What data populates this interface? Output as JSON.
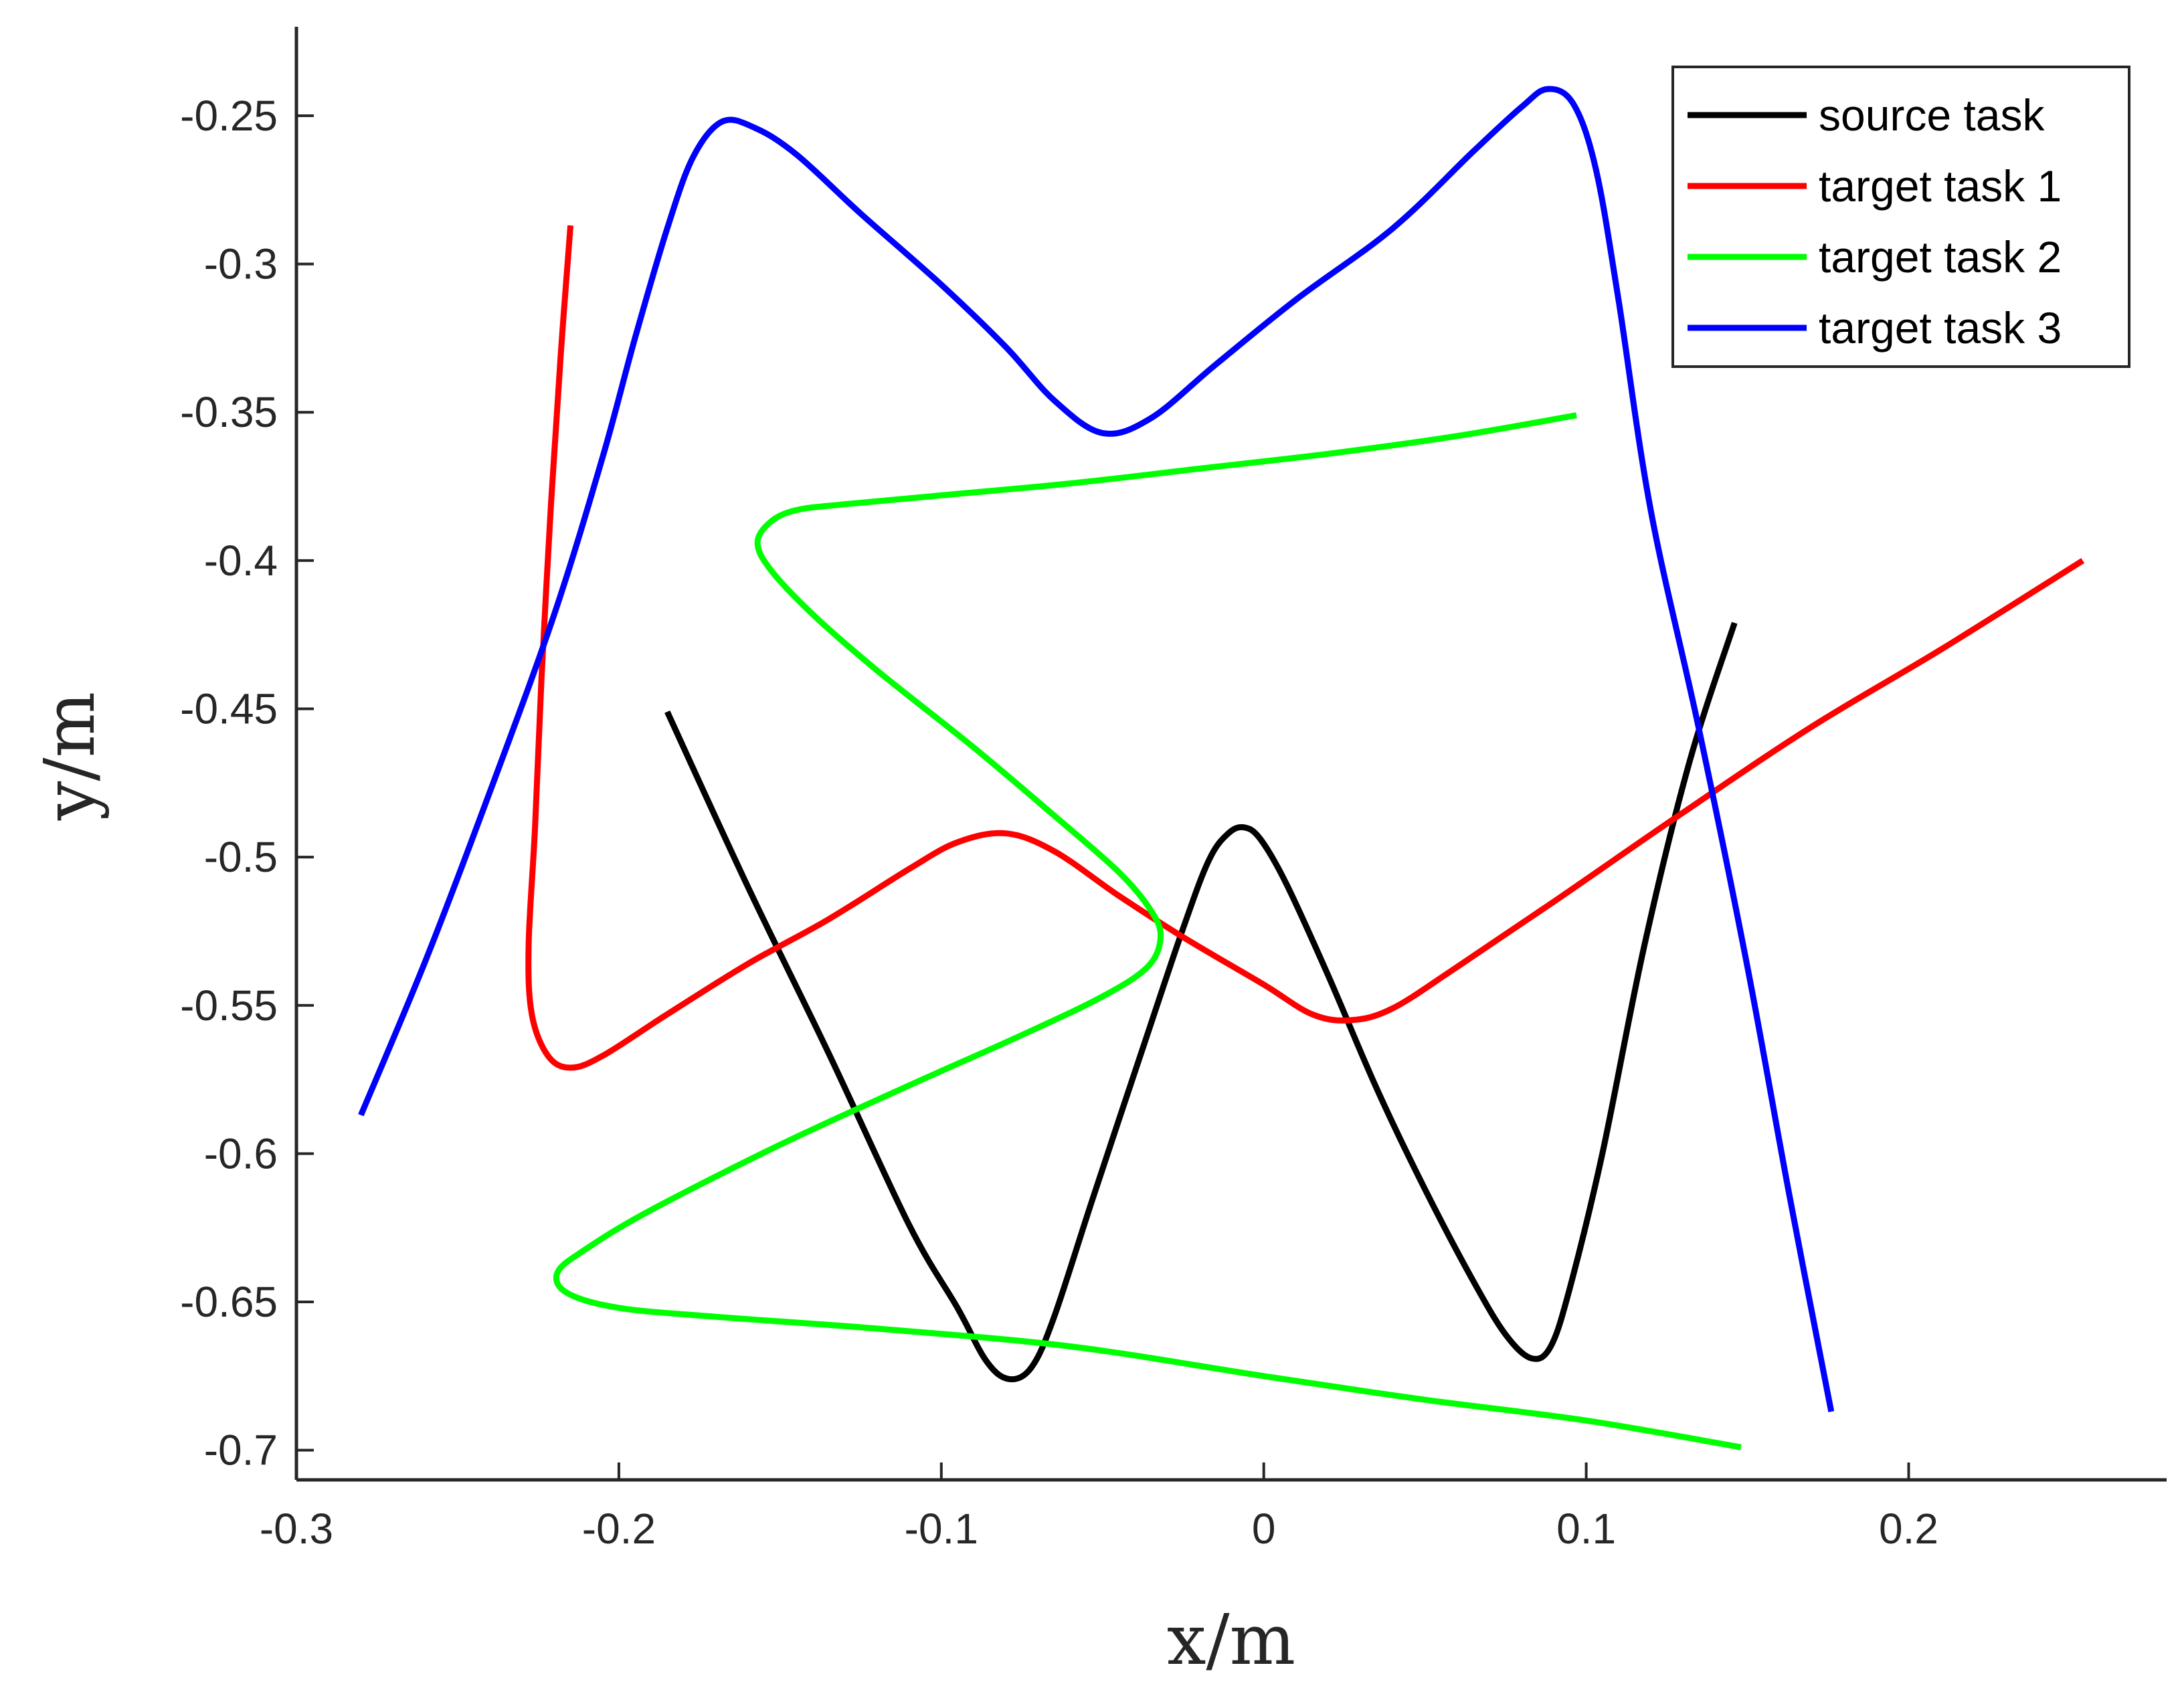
{
  "chart_data": {
    "type": "line",
    "title": "",
    "xlabel": "x/m",
    "ylabel": "y/m",
    "xlim": [
      -0.3,
      0.28
    ],
    "ylim": [
      -0.71,
      -0.22
    ],
    "xticks": [
      -0.3,
      -0.2,
      -0.1,
      0,
      0.1,
      0.2
    ],
    "xtick_labels": [
      "-0.3",
      "-0.2",
      "-0.1",
      "0",
      "0.1",
      "0.2"
    ],
    "yticks": [
      -0.7,
      -0.65,
      -0.6,
      -0.55,
      -0.5,
      -0.45,
      -0.4,
      -0.35,
      -0.3,
      -0.25
    ],
    "ytick_labels": [
      "-0.7",
      "-0.65",
      "-0.6",
      "-0.55",
      "-0.5",
      "-0.45",
      "-0.4",
      "-0.35",
      "-0.3",
      "-0.25"
    ],
    "grid": false,
    "legend_position": "top-right",
    "series": [
      {
        "name": "source task",
        "color": "#000000",
        "points": [
          [
            -0.185,
            -0.451
          ],
          [
            -0.16,
            -0.51
          ],
          [
            -0.135,
            -0.566
          ],
          [
            -0.11,
            -0.624
          ],
          [
            -0.095,
            -0.652
          ],
          [
            -0.086,
            -0.67
          ],
          [
            -0.079,
            -0.676
          ],
          [
            -0.072,
            -0.672
          ],
          [
            -0.065,
            -0.655
          ],
          [
            -0.053,
            -0.615
          ],
          [
            -0.038,
            -0.566
          ],
          [
            -0.025,
            -0.524
          ],
          [
            -0.017,
            -0.501
          ],
          [
            -0.011,
            -0.492
          ],
          [
            -0.006,
            -0.49
          ],
          [
            -0.001,
            -0.494
          ],
          [
            0.007,
            -0.509
          ],
          [
            0.02,
            -0.54
          ],
          [
            0.035,
            -0.578
          ],
          [
            0.05,
            -0.612
          ],
          [
            0.065,
            -0.643
          ],
          [
            0.075,
            -0.661
          ],
          [
            0.083,
            -0.669
          ],
          [
            0.089,
            -0.665
          ],
          [
            0.095,
            -0.645
          ],
          [
            0.105,
            -0.6
          ],
          [
            0.118,
            -0.53
          ],
          [
            0.132,
            -0.468
          ],
          [
            0.146,
            -0.421
          ]
        ]
      },
      {
        "name": "target task 1",
        "color": "#ff0000",
        "points": [
          [
            -0.215,
            -0.287
          ],
          [
            -0.218,
            -0.33
          ],
          [
            -0.221,
            -0.38
          ],
          [
            -0.224,
            -0.44
          ],
          [
            -0.226,
            -0.49
          ],
          [
            -0.228,
            -0.53
          ],
          [
            -0.227,
            -0.553
          ],
          [
            -0.222,
            -0.567
          ],
          [
            -0.215,
            -0.571
          ],
          [
            -0.205,
            -0.567
          ],
          [
            -0.185,
            -0.553
          ],
          [
            -0.16,
            -0.536
          ],
          [
            -0.135,
            -0.521
          ],
          [
            -0.11,
            -0.504
          ],
          [
            -0.095,
            -0.495
          ],
          [
            -0.08,
            -0.492
          ],
          [
            -0.065,
            -0.498
          ],
          [
            -0.045,
            -0.513
          ],
          [
            -0.025,
            -0.527
          ],
          [
            0.0,
            -0.543
          ],
          [
            0.015,
            -0.553
          ],
          [
            0.027,
            -0.555
          ],
          [
            0.04,
            -0.551
          ],
          [
            0.06,
            -0.537
          ],
          [
            0.09,
            -0.515
          ],
          [
            0.13,
            -0.485
          ],
          [
            0.17,
            -0.456
          ],
          [
            0.21,
            -0.43
          ],
          [
            0.254,
            -0.4
          ]
        ]
      },
      {
        "name": "target task 2",
        "color": "#00ff00",
        "points": [
          [
            0.097,
            -0.351
          ],
          [
            0.06,
            -0.358
          ],
          [
            0.02,
            -0.364
          ],
          [
            -0.02,
            -0.369
          ],
          [
            -0.06,
            -0.374
          ],
          [
            -0.1,
            -0.378
          ],
          [
            -0.13,
            -0.381
          ],
          [
            -0.145,
            -0.383
          ],
          [
            -0.153,
            -0.387
          ],
          [
            -0.157,
            -0.394
          ],
          [
            -0.153,
            -0.403
          ],
          [
            -0.14,
            -0.418
          ],
          [
            -0.12,
            -0.437
          ],
          [
            -0.09,
            -0.463
          ],
          [
            -0.065,
            -0.486
          ],
          [
            -0.045,
            -0.505
          ],
          [
            -0.035,
            -0.518
          ],
          [
            -0.032,
            -0.527
          ],
          [
            -0.036,
            -0.537
          ],
          [
            -0.05,
            -0.547
          ],
          [
            -0.075,
            -0.56
          ],
          [
            -0.11,
            -0.577
          ],
          [
            -0.15,
            -0.597
          ],
          [
            -0.19,
            -0.619
          ],
          [
            -0.21,
            -0.632
          ],
          [
            -0.219,
            -0.64
          ],
          [
            -0.216,
            -0.647
          ],
          [
            -0.2,
            -0.652
          ],
          [
            -0.17,
            -0.655
          ],
          [
            -0.12,
            -0.659
          ],
          [
            -0.06,
            -0.665
          ],
          [
            0.0,
            -0.675
          ],
          [
            0.05,
            -0.683
          ],
          [
            0.1,
            -0.69
          ],
          [
            0.148,
            -0.699
          ]
        ]
      },
      {
        "name": "target task 3",
        "color": "#0000ff",
        "points": [
          [
            -0.28,
            -0.587
          ],
          [
            -0.26,
            -0.535
          ],
          [
            -0.24,
            -0.478
          ],
          [
            -0.22,
            -0.418
          ],
          [
            -0.205,
            -0.365
          ],
          [
            -0.195,
            -0.325
          ],
          [
            -0.185,
            -0.288
          ],
          [
            -0.177,
            -0.264
          ],
          [
            -0.168,
            -0.252
          ],
          [
            -0.158,
            -0.254
          ],
          [
            -0.145,
            -0.263
          ],
          [
            -0.125,
            -0.283
          ],
          [
            -0.1,
            -0.307
          ],
          [
            -0.08,
            -0.328
          ],
          [
            -0.065,
            -0.346
          ],
          [
            -0.05,
            -0.357
          ],
          [
            -0.035,
            -0.352
          ],
          [
            -0.015,
            -0.334
          ],
          [
            0.01,
            -0.312
          ],
          [
            0.04,
            -0.288
          ],
          [
            0.065,
            -0.262
          ],
          [
            0.08,
            -0.247
          ],
          [
            0.088,
            -0.241
          ],
          [
            0.096,
            -0.246
          ],
          [
            0.103,
            -0.268
          ],
          [
            0.11,
            -0.312
          ],
          [
            0.12,
            -0.383
          ],
          [
            0.135,
            -0.457
          ],
          [
            0.15,
            -0.537
          ],
          [
            0.163,
            -0.614
          ],
          [
            0.176,
            -0.687
          ]
        ]
      }
    ]
  }
}
